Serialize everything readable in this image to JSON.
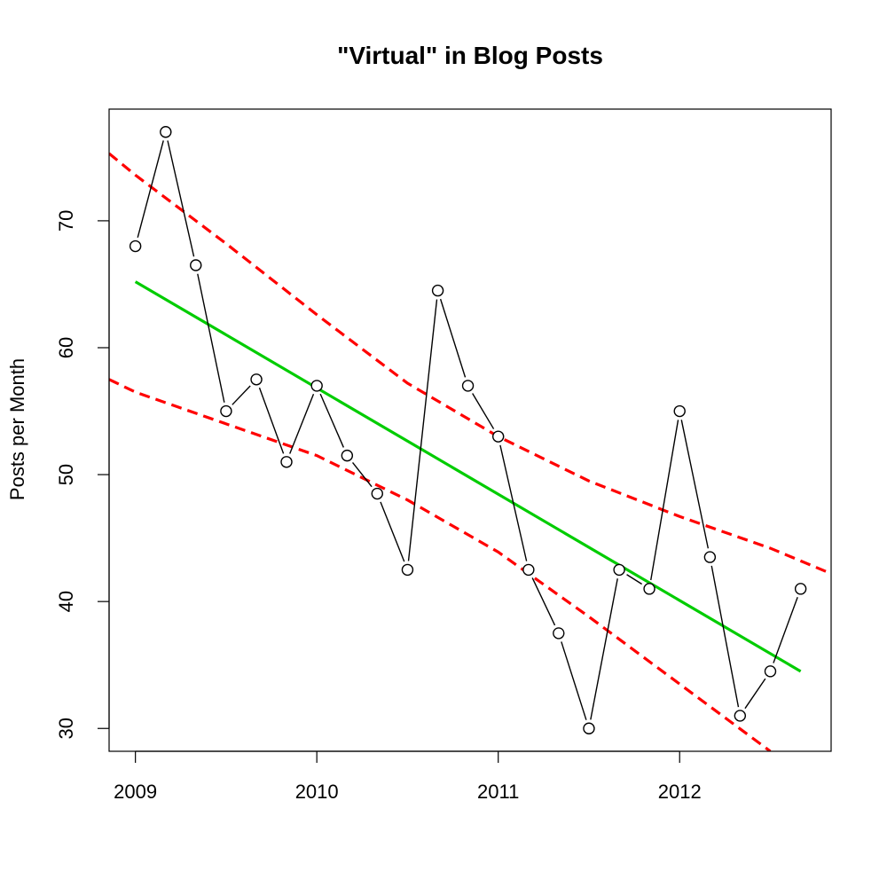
{
  "chart_data": {
    "type": "line",
    "title": "\"Virtual\" in Blog Posts",
    "xlabel": "",
    "ylabel": "Posts per Month",
    "xlim": [
      2008.855,
      2012.835
    ],
    "ylim": [
      28.2,
      78.8
    ],
    "x_ticks": [
      2009,
      2010,
      2011,
      2012
    ],
    "x_tick_labels": [
      "2009",
      "2010",
      "2011",
      "2012"
    ],
    "y_ticks": [
      30,
      40,
      50,
      60,
      70
    ],
    "y_tick_labels": [
      "30",
      "40",
      "50",
      "60",
      "70"
    ],
    "grid": false,
    "legend": "none",
    "x": [
      2009.0,
      2009.167,
      2009.333,
      2009.5,
      2009.667,
      2009.833,
      2010.0,
      2010.167,
      2010.333,
      2010.5,
      2010.667,
      2010.833,
      2011.0,
      2011.167,
      2011.333,
      2011.5,
      2011.667,
      2011.833,
      2012.0,
      2012.167,
      2012.333,
      2012.5,
      2012.667
    ],
    "series": [
      {
        "style": "points-and-lines",
        "color": "#000000",
        "values": [
          68,
          77,
          66.5,
          55,
          57.5,
          51,
          57,
          51.5,
          48.5,
          42.5,
          64.5,
          57,
          53,
          42.5,
          37.5,
          30,
          42.5,
          41,
          55,
          43.5,
          31,
          34.5,
          41
        ]
      },
      {
        "style": "solid-line",
        "color": "#00cc00",
        "x": [
          2009.0,
          2012.667
        ],
        "values": [
          65.2,
          34.5
        ]
      },
      {
        "style": "dashed-line",
        "color": "#ff0000",
        "x": [
          2008.855,
          2009.0,
          2009.5,
          2010.0,
          2010.5,
          2011.0,
          2011.5,
          2012.0,
          2012.5,
          2012.835
        ],
        "values": [
          75.3,
          73.6,
          68.2,
          62.6,
          57.2,
          53.0,
          49.5,
          46.7,
          44.2,
          42.2
        ]
      },
      {
        "style": "dashed-line",
        "color": "#ff0000",
        "x": [
          2008.855,
          2009.0,
          2009.5,
          2010.0,
          2010.5,
          2011.0,
          2011.5,
          2012.0,
          2012.5
        ],
        "values": [
          57.5,
          56.5,
          54.0,
          51.5,
          48.0,
          43.9,
          38.8,
          33.5,
          28.2
        ]
      }
    ]
  }
}
